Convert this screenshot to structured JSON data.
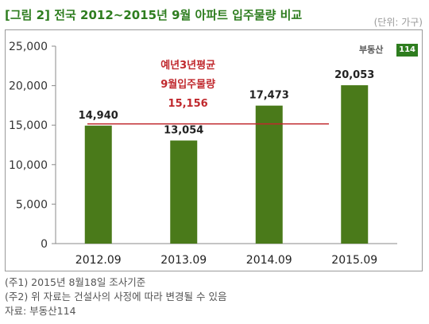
{
  "header": {
    "title": "[그림 2] 전국 2012~2015년 9월 아파트 입주물량 비교",
    "unit": "(단위: 가구)"
  },
  "logo": {
    "text": "부동산",
    "number": "114"
  },
  "chart_data": {
    "type": "bar",
    "categories": [
      "2012.09",
      "2013.09",
      "2014.09",
      "2015.09"
    ],
    "values": [
      14940,
      13054,
      17473,
      20053
    ],
    "value_labels": [
      "14,940",
      "13,054",
      "17,473",
      "20,053"
    ],
    "ylim": [
      0,
      25000
    ],
    "yticks": [
      0,
      5000,
      10000,
      15000,
      20000,
      25000
    ],
    "ytick_labels": [
      "0",
      "5,000",
      "10,000",
      "15,000",
      "20,000",
      "25,000"
    ],
    "bar_color": "#4a7a1a",
    "grid": false,
    "reference_line": {
      "value": 15156,
      "color": "#c0282d",
      "label_lines": [
        "예년3년평균",
        "9월입주물량",
        "15,156"
      ]
    }
  },
  "notes": [
    "(주1) 2015년 8월18일 조사기준",
    "(주2) 위 자료는 건설사의 사정에 따라 변경될 수 있음",
    "자료: 부동산114"
  ]
}
